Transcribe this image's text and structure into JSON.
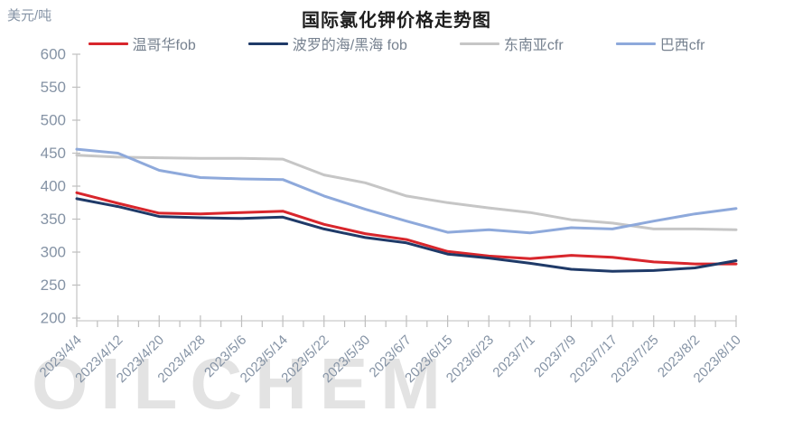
{
  "page": {
    "unit_label": "美元/吨",
    "watermark": "OILCHEM"
  },
  "chart_data": {
    "type": "line",
    "title": "国际氯化钾价格走势图",
    "ylabel": "美元/吨",
    "xlabel": "",
    "x": [
      "2023/4/4",
      "2023/4/12",
      "2023/4/20",
      "2023/4/28",
      "2023/5/6",
      "2023/5/14",
      "2023/5/22",
      "2023/5/30",
      "2023/6/7",
      "2023/6/15",
      "2023/6/23",
      "2023/7/1",
      "2023/7/9",
      "2023/7/17",
      "2023/7/25",
      "2023/8/2",
      "2023/8/10"
    ],
    "series": [
      {
        "name": "温哥华fob",
        "color": "#d8262c",
        "values": [
          390,
          374,
          359,
          358,
          360,
          362,
          342,
          328,
          319,
          301,
          294,
          290,
          295,
          292,
          285,
          282,
          282
        ]
      },
      {
        "name": "波罗的海/黑海 fob",
        "color": "#1f3a68",
        "values": [
          381,
          369,
          354,
          352,
          351,
          353,
          335,
          322,
          314,
          297,
          291,
          283,
          274,
          271,
          272,
          276,
          287
        ]
      },
      {
        "name": "东南亚cfr",
        "color": "#c6c6c6",
        "values": [
          447,
          444,
          443,
          442,
          442,
          441,
          417,
          405,
          385,
          375,
          367,
          360,
          349,
          344,
          335,
          335,
          334
        ]
      },
      {
        "name": "巴西cfr",
        "color": "#8ea9db",
        "values": [
          456,
          450,
          424,
          413,
          411,
          410,
          385,
          365,
          347,
          330,
          334,
          329,
          337,
          335,
          347,
          358,
          366
        ]
      }
    ],
    "ylim": [
      200,
      600
    ],
    "ytick_step": 50,
    "grid": false,
    "legend_position": "top"
  },
  "style": {
    "axis_color": "#c9c9c9",
    "tick_color": "#bfbfbf",
    "tick_label_color": "#8593a5",
    "watermark_color": "#e3e3e3"
  }
}
